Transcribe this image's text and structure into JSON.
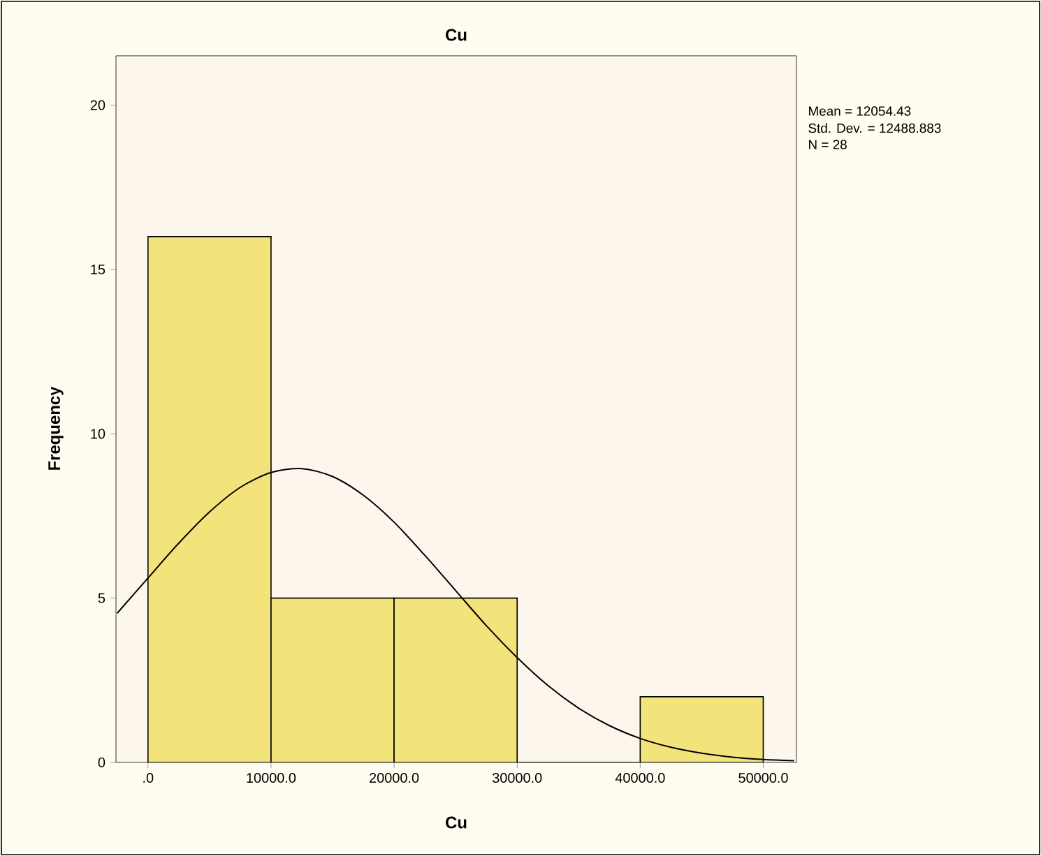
{
  "chart_data": {
    "type": "histogram",
    "title": "Cu",
    "xlabel": "Cu",
    "ylabel": "Frequency",
    "bins": [
      0,
      10000,
      20000,
      30000,
      40000,
      50000
    ],
    "values": [
      16,
      5,
      5,
      0,
      2
    ],
    "color": "#f3e37b",
    "series": [
      {
        "type": "line",
        "color": "#000000",
        "x": [
          -2500,
          0,
          2500,
          5000,
          7500,
          10000,
          12500,
          15000,
          17500,
          20000,
          22500,
          25000,
          27500,
          30000,
          32500,
          35000,
          37500,
          40000,
          42500,
          45000,
          47500,
          50000,
          52500
        ],
        "values": [
          4.54,
          5.61,
          6.67,
          7.62,
          8.37,
          8.82,
          8.94,
          8.7,
          8.13,
          7.31,
          6.3,
          5.23,
          4.16,
          3.19,
          2.34,
          1.65,
          1.12,
          0.73,
          0.46,
          0.28,
          0.16,
          0.09,
          0.05
        ]
      }
    ],
    "xlim": [
      -2600,
      52700
    ],
    "ylim": [
      0,
      21.5
    ],
    "xticks": [
      {
        "value": 0,
        "label": ".0"
      },
      {
        "value": 10000,
        "label": "10000.0"
      },
      {
        "value": 20000,
        "label": "20000.0"
      },
      {
        "value": 30000,
        "label": "30000.0"
      },
      {
        "value": 40000,
        "label": "40000.0"
      },
      {
        "value": 50000,
        "label": "50000.0"
      }
    ],
    "yticks": [
      0,
      5,
      10,
      15,
      20
    ],
    "grid": false,
    "annotations": [
      "Mean = 12054.43",
      "Std. Dev. = 12488.883",
      "N = 28"
    ]
  }
}
